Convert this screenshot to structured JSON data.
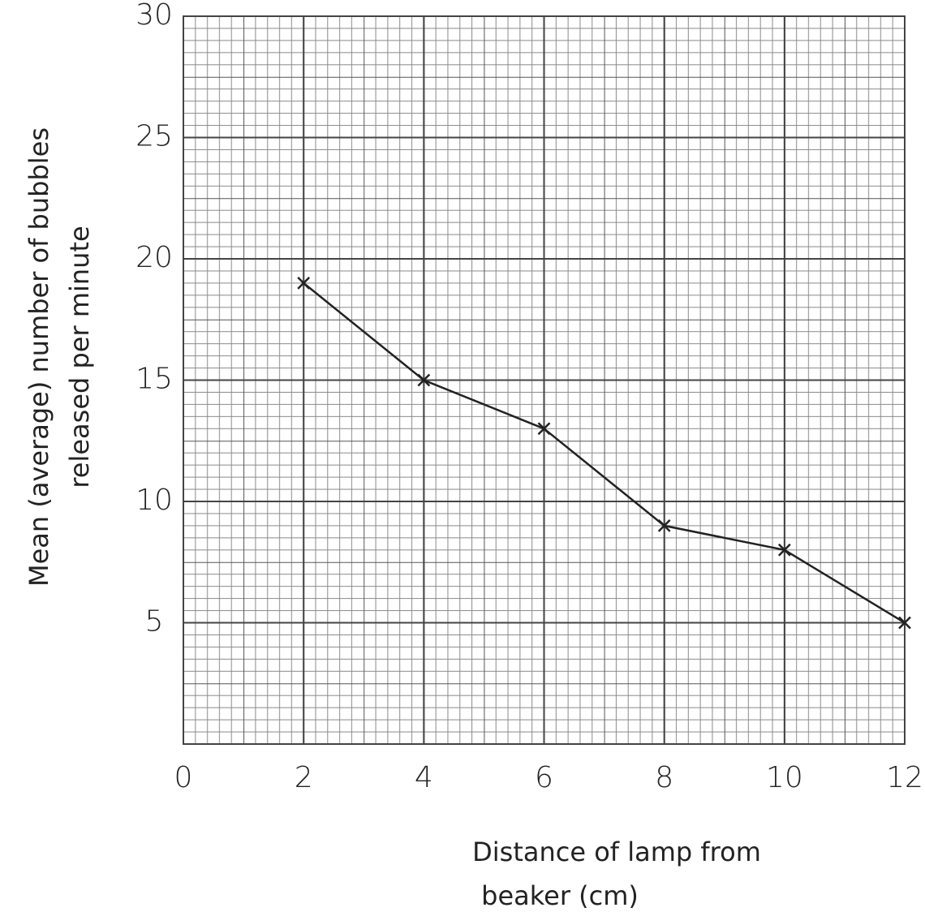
{
  "chart_data": {
    "type": "line",
    "x": [
      2,
      4,
      6,
      8,
      10,
      12
    ],
    "series": [
      {
        "color": "#222222",
        "values": [
          19,
          15,
          13,
          9,
          8,
          5
        ]
      }
    ],
    "xlim": [
      0,
      12
    ],
    "xticks": [
      0,
      2,
      4,
      6,
      8,
      10,
      12
    ],
    "ylim": [
      0,
      30
    ],
    "yticks": [
      5,
      10,
      15,
      20,
      25,
      30
    ],
    "xlabel": [
      "Distance of lamp from",
      "beaker (cm)"
    ],
    "ylabel": [
      "Mean (average) number of bubbles",
      "released per minute"
    ],
    "grid": true,
    "marker": "x"
  }
}
